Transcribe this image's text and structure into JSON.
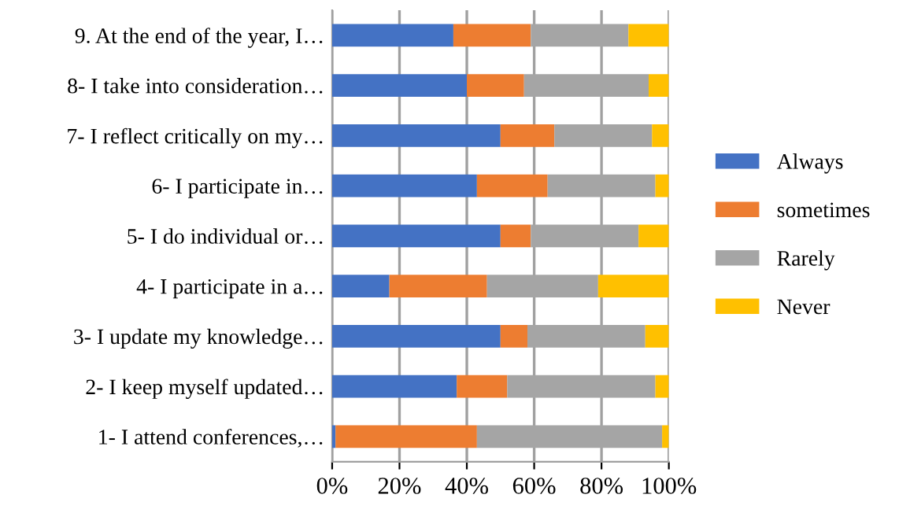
{
  "chart_data": {
    "type": "bar",
    "orientation": "horizontal",
    "stacked": true,
    "categories": [
      "9. At the end of the year, I…",
      "8- I take into consideration…",
      "7- I reflect critically on my…",
      "6- I participate in…",
      "5- I do individual or…",
      "4- I participate in a…",
      "3- I update my knowledge…",
      "2- I keep myself updated…",
      "1- I attend conferences,…"
    ],
    "series": [
      {
        "name": "Always",
        "color": "#4472c4",
        "values": [
          36,
          40,
          50,
          43,
          50,
          17,
          50,
          37,
          1
        ]
      },
      {
        "name": "sometimes",
        "color": "#ed7d31",
        "values": [
          23,
          17,
          16,
          21,
          9,
          29,
          8,
          15,
          42
        ]
      },
      {
        "name": "Rarely",
        "color": "#a5a5a5",
        "values": [
          29,
          37,
          29,
          32,
          32,
          33,
          35,
          44,
          55
        ]
      },
      {
        "name": "Never",
        "color": "#ffc000",
        "values": [
          12,
          6,
          5,
          4,
          9,
          21,
          7,
          4,
          2
        ]
      }
    ],
    "xlim": [
      0,
      100
    ],
    "xticks": [
      {
        "value": 0,
        "label": "0%"
      },
      {
        "value": 20,
        "label": "20%"
      },
      {
        "value": 40,
        "label": "40%"
      },
      {
        "value": 60,
        "label": "60%"
      },
      {
        "value": 80,
        "label": "80%"
      },
      {
        "value": 100,
        "label": "100%"
      }
    ],
    "grid": "x",
    "legend": "right"
  }
}
